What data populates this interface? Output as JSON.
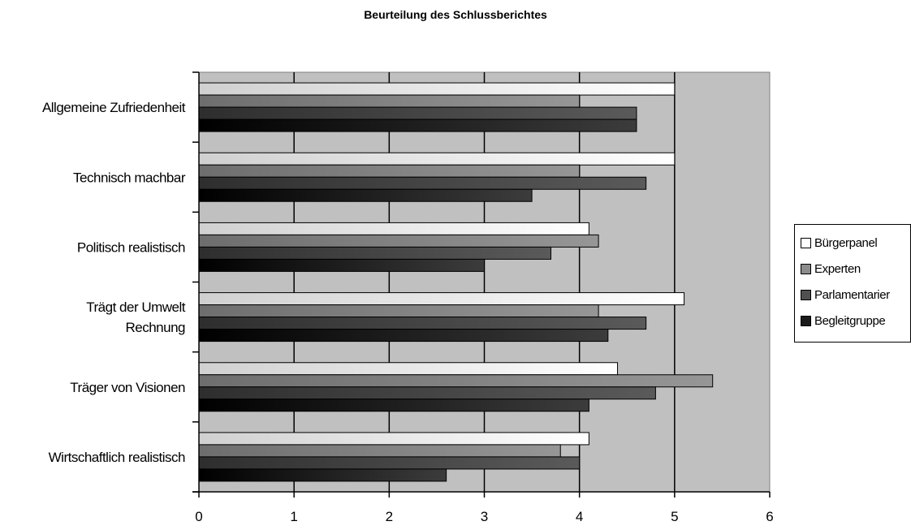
{
  "chart_data": {
    "type": "bar",
    "orientation": "horizontal",
    "title": "Beurteilung des Schlussberichtes",
    "categories": [
      [
        "Allgemeine Zufriedenheit"
      ],
      [
        "Technisch machbar"
      ],
      [
        "Politisch realistisch"
      ],
      [
        "Trägt der Umwelt",
        "Rechnung"
      ],
      [
        "Träger von Visionen"
      ],
      [
        "Wirtschaftlich realistisch"
      ]
    ],
    "series": [
      {
        "name": "Bürgerpanel",
        "color": "#ffffff",
        "values": [
          5.0,
          5.0,
          4.1,
          5.1,
          4.4,
          4.1
        ]
      },
      {
        "name": "Experten",
        "color": "#8c8c8c",
        "values": [
          4.0,
          4.0,
          4.2,
          4.2,
          5.4,
          3.8
        ]
      },
      {
        "name": "Parlamentarier",
        "color": "#505050",
        "values": [
          4.6,
          4.7,
          3.7,
          4.7,
          4.8,
          4.0
        ]
      },
      {
        "name": "Begleitgruppe",
        "color": "#1a1a1a",
        "values": [
          4.6,
          3.5,
          3.0,
          4.3,
          4.1,
          2.6
        ]
      }
    ],
    "xlim": [
      0,
      6
    ],
    "xticks": [
      "0",
      "1",
      "2",
      "3",
      "4",
      "5",
      "6"
    ],
    "grid": true,
    "plot_background": "#c0c0c0",
    "legend_position": "right"
  }
}
